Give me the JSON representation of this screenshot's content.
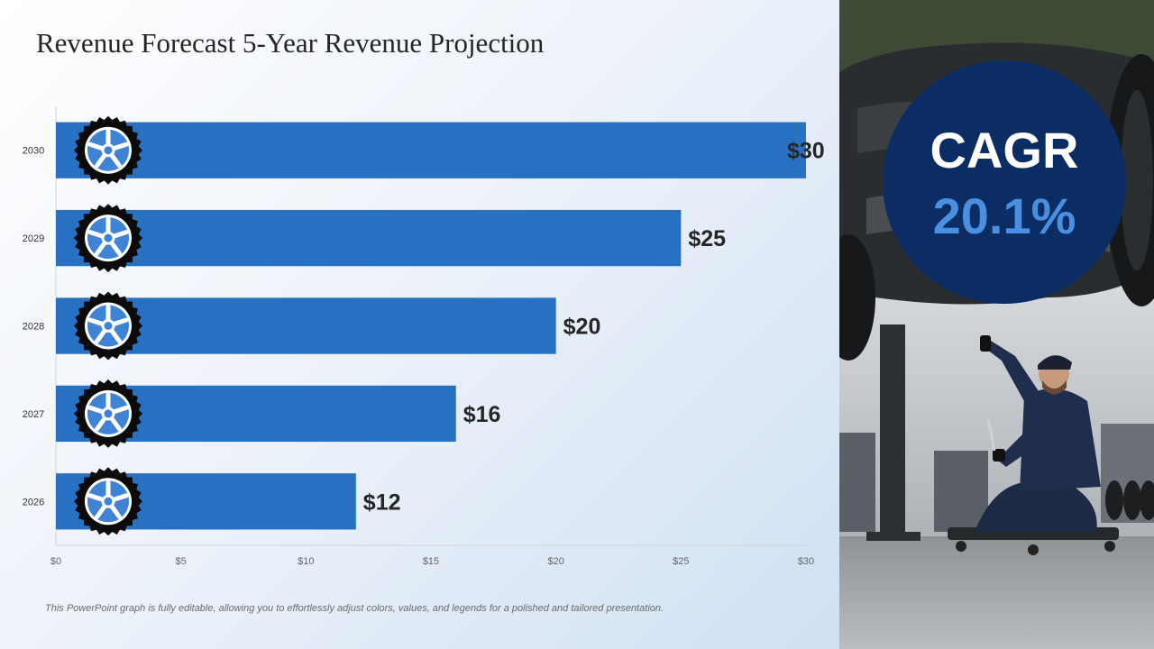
{
  "slide": {
    "title": "Revenue Forecast 5-Year Revenue Projection",
    "footnote": "This PowerPoint graph is fully editable, allowing you to effortlessly adjust colors, values, and legends for a polished and tailored presentation."
  },
  "cagr": {
    "label": "CAGR",
    "value": "20.1%"
  },
  "photo": {
    "subject": "mechanic-working-under-lifted-car"
  },
  "colors": {
    "bar": "#2770c2",
    "cagr_circle": "#0c2d63",
    "cagr_value": "#4a90e2",
    "tire": "#0b0b0b",
    "rim": "#3f83d6"
  },
  "chart_data": {
    "type": "bar",
    "orientation": "horizontal",
    "categories": [
      "2030",
      "2029",
      "2028",
      "2027",
      "2026"
    ],
    "values": [
      30,
      25,
      20,
      16,
      12
    ],
    "data_labels": [
      "$30",
      "$25",
      "$20",
      "$16",
      "$12"
    ],
    "xlim": [
      0,
      30
    ],
    "x_ticks": [
      0,
      5,
      10,
      15,
      20,
      25,
      30
    ],
    "x_tick_labels": [
      "$0",
      "$5",
      "$10",
      "$15",
      "$20",
      "$25",
      "$30"
    ],
    "bar_icon": "tire-icon",
    "grid": false,
    "legend": "none"
  }
}
